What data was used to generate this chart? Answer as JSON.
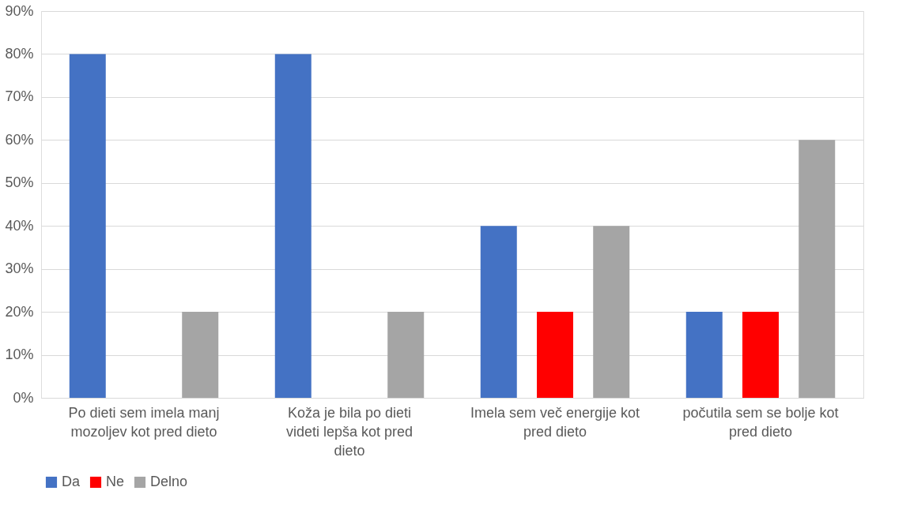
{
  "chart_data": {
    "type": "bar",
    "categories": [
      "Po dieti sem imela manj mozoljev kot pred dieto",
      "Koža je bila po dieti videti lepša kot pred dieto",
      "Imela sem več energije kot pred dieto",
      "počutila sem se bolje kot pred dieto"
    ],
    "series": [
      {
        "name": "Da",
        "color": "#4472c4",
        "values": [
          80,
          80,
          40,
          20
        ]
      },
      {
        "name": "Ne",
        "color": "#ff0000",
        "values": [
          0,
          0,
          20,
          20
        ]
      },
      {
        "name": "Delno",
        "color": "#a5a5a5",
        "values": [
          20,
          20,
          40,
          60
        ]
      }
    ],
    "ylim": [
      0,
      90
    ],
    "yticks": [
      {
        "value": 0,
        "label": "0%"
      },
      {
        "value": 10,
        "label": "10%"
      },
      {
        "value": 20,
        "label": "20%"
      },
      {
        "value": 30,
        "label": "30%"
      },
      {
        "value": 40,
        "label": "40%"
      },
      {
        "value": 50,
        "label": "50%"
      },
      {
        "value": 60,
        "label": "60%"
      },
      {
        "value": 70,
        "label": "70%"
      },
      {
        "value": 80,
        "label": "80%"
      },
      {
        "value": 90,
        "label": "90%"
      }
    ],
    "grid": "y",
    "legend": "bottom"
  }
}
